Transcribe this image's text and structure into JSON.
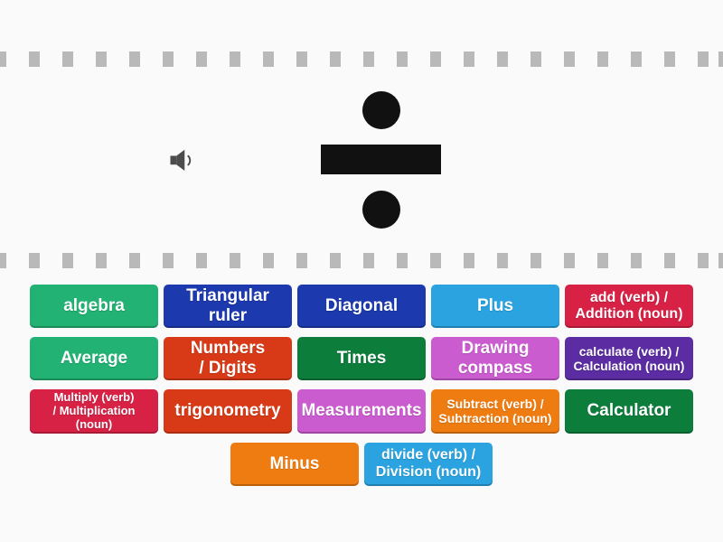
{
  "page": {
    "background_color": "#fafafa",
    "dash_color": "#b9b9b9",
    "activity_type": "find-the-match"
  },
  "question": {
    "audio_icon": "speaker-icon",
    "audio_icon_color": "#4c4c4c",
    "image": "division-sign",
    "image_color": "#111111"
  },
  "answers": [
    {
      "label": "algebra",
      "color": "#22b273"
    },
    {
      "label": "Triangular\nruler",
      "color": "#1c39ae"
    },
    {
      "label": "Diagonal",
      "color": "#1c39ae"
    },
    {
      "label": "Plus",
      "color": "#2aa3e0"
    },
    {
      "label": "add (verb) /\nAddition (noun)",
      "color": "#d72145"
    },
    {
      "label": "Average",
      "color": "#22b273"
    },
    {
      "label": "Numbers\n/ Digits",
      "color": "#d83a17"
    },
    {
      "label": "Times",
      "color": "#0d7d3c"
    },
    {
      "label": "Drawing\ncompass",
      "color": "#ca5cd0"
    },
    {
      "label": "calculate (verb) /\nCalculation (noun)",
      "color": "#5b2ca2"
    },
    {
      "label": "Multiply (verb)\n/ Multiplication\n(noun)",
      "color": "#d72145"
    },
    {
      "label": "trigonometry",
      "color": "#d83a17"
    },
    {
      "label": "Measurements",
      "color": "#ca5cd0"
    },
    {
      "label": "Subtract (verb) /\nSubtraction (noun)",
      "color": "#ee7c11"
    },
    {
      "label": "Calculator",
      "color": "#0d7d3c"
    },
    {
      "label": "Minus",
      "color": "#ee7c11"
    },
    {
      "label": "divide (verb) /\nDivision (noun)",
      "color": "#2aa3e0"
    }
  ]
}
